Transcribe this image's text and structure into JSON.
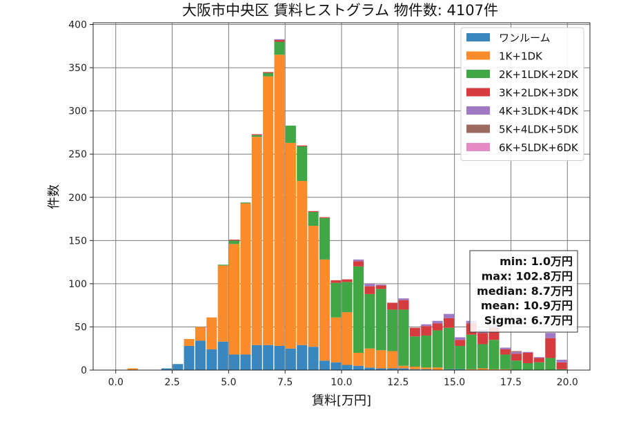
{
  "chart_data": {
    "type": "bar",
    "stacked": true,
    "title": "大阪市中央区 賃料ヒストグラム  物件数: 4107件",
    "xlabel": "賃料[万円]",
    "ylabel": "件数",
    "xlim": [
      -1,
      21
    ],
    "ylim": [
      0,
      402
    ],
    "grid": true,
    "legend_position": "top-right",
    "xticks": [
      "0.0",
      "2.5",
      "5.0",
      "7.5",
      "10.0",
      "12.5",
      "15.0",
      "17.5",
      "20.0"
    ],
    "xtick_values": [
      0,
      2.5,
      5,
      7.5,
      10,
      12.5,
      15,
      17.5,
      20
    ],
    "yticks": [
      0,
      50,
      100,
      150,
      200,
      250,
      300,
      350,
      400
    ],
    "bin_width": 0.5,
    "x": [
      0.25,
      0.75,
      1.25,
      1.75,
      2.25,
      2.75,
      3.25,
      3.75,
      4.25,
      4.75,
      5.25,
      5.75,
      6.25,
      6.75,
      7.25,
      7.75,
      8.25,
      8.75,
      9.25,
      9.75,
      10.25,
      10.75,
      11.25,
      11.75,
      12.25,
      12.75,
      13.25,
      13.75,
      14.25,
      14.75,
      15.25,
      15.75,
      16.25,
      16.75,
      17.25,
      17.75,
      18.25,
      18.75,
      19.25,
      19.75
    ],
    "series": [
      {
        "name": "ワンルーム",
        "color": "#3a87bf",
        "values": [
          0,
          0,
          0,
          0,
          2,
          7,
          28,
          34,
          24,
          33,
          18,
          18,
          29,
          29,
          28,
          25,
          29,
          27,
          11,
          9,
          6,
          5,
          3,
          2,
          2,
          2,
          1,
          1,
          0,
          1,
          1,
          0,
          0,
          0,
          0,
          0,
          0,
          0,
          0,
          0
        ]
      },
      {
        "name": "1K+1DK",
        "color": "#fb8c2c",
        "values": [
          0,
          2,
          0,
          0,
          0,
          0,
          8,
          16,
          37,
          88,
          128,
          175,
          241,
          311,
          337,
          238,
          190,
          140,
          117,
          52,
          61,
          15,
          22,
          21,
          20,
          3,
          3,
          2,
          3,
          0,
          0,
          1,
          2,
          1,
          1,
          0,
          0,
          0,
          0,
          0
        ]
      },
      {
        "name": "2K+1LDK+2DK",
        "color": "#41a646",
        "values": [
          0,
          0,
          0,
          0,
          0,
          0,
          0,
          0,
          0,
          1,
          4,
          1,
          2,
          4,
          15,
          20,
          40,
          16,
          48,
          40,
          35,
          100,
          63,
          71,
          48,
          65,
          35,
          37,
          43,
          48,
          27,
          40,
          28,
          34,
          17,
          11,
          8,
          9,
          14,
          1
        ]
      },
      {
        "name": "3K+2LDK+3DK",
        "color": "#d63b3d",
        "values": [
          0,
          0,
          0,
          0,
          0,
          0,
          0,
          0,
          0,
          0,
          1,
          0,
          1,
          1,
          2,
          0,
          1,
          1,
          1,
          3,
          3,
          6,
          9,
          4,
          8,
          11,
          10,
          11,
          8,
          11,
          7,
          13,
          13,
          14,
          6,
          8,
          12,
          5,
          23,
          8
        ]
      },
      {
        "name": "4K+3LDK+4DK",
        "color": "#9f79c4",
        "values": [
          0,
          0,
          0,
          0,
          0,
          0,
          0,
          0,
          0,
          0,
          0,
          0,
          0,
          0,
          1,
          0,
          0,
          0,
          0,
          0,
          0,
          2,
          3,
          1,
          0,
          2,
          0,
          2,
          3,
          5,
          3,
          3,
          4,
          3,
          2,
          2,
          1,
          1,
          6,
          3
        ]
      },
      {
        "name": "5K+4LDK+5DK",
        "color": "#9c6a5e",
        "values": [
          0,
          0,
          0,
          0,
          0,
          0,
          0,
          0,
          0,
          0,
          0,
          0,
          0,
          0,
          0,
          0,
          0,
          0,
          0,
          0,
          0,
          0,
          0,
          0,
          0,
          0,
          0,
          0,
          0,
          0,
          0,
          0,
          0,
          0,
          0,
          1,
          0,
          0,
          0,
          0
        ]
      },
      {
        "name": "6K+5LDK+6DK",
        "color": "#e58ac5",
        "values": [
          0,
          0,
          0,
          0,
          0,
          0,
          0,
          0,
          0,
          0,
          0,
          0,
          0,
          0,
          0,
          0,
          0,
          0,
          0,
          0,
          0,
          0,
          0,
          0,
          0,
          0,
          0,
          0,
          0,
          0,
          0,
          0,
          0,
          0,
          0,
          0,
          0,
          0,
          0,
          0
        ]
      }
    ],
    "annotation": {
      "lines": [
        "min: 1.0万円",
        "max: 102.8万円",
        "median: 8.7万円",
        "mean: 10.9万円",
        "Sigma: 6.7万円"
      ]
    }
  }
}
